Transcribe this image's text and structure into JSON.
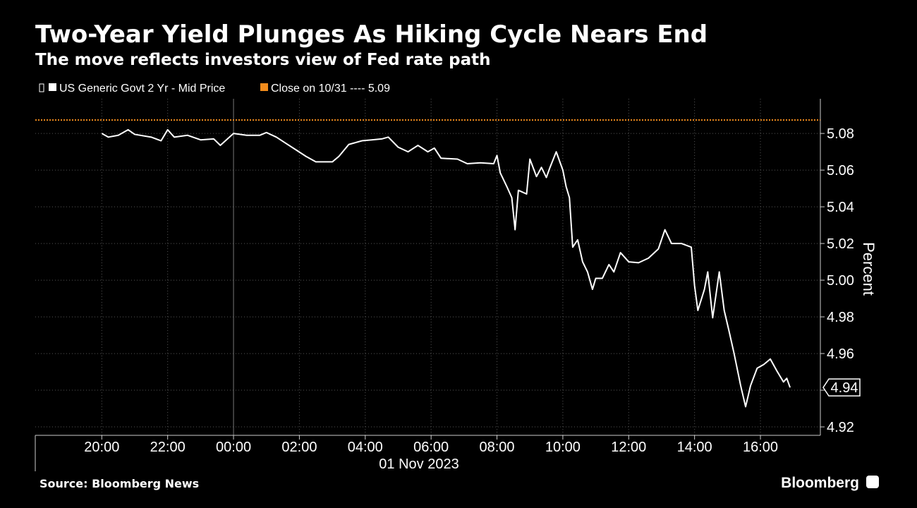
{
  "chart_data": {
    "type": "line",
    "title": "Two-Year Yield Plunges As Hiking Cycle Nears End",
    "subtitle": "The move reflects investors view of Fed rate path",
    "x_label": "01 Nov 2023",
    "y_label": "Percent",
    "source": "Source: Bloomberg News",
    "brand": "Bloomberg",
    "xlim": [
      -6.02,
      17.82
    ],
    "ylim": [
      4.9154,
      5.0989
    ],
    "xticks": [
      {
        "value": -4,
        "label": "20:00"
      },
      {
        "value": -2,
        "label": "22:00"
      },
      {
        "value": 0,
        "label": "00:00"
      },
      {
        "value": 2,
        "label": "02:00"
      },
      {
        "value": 4,
        "label": "04:00"
      },
      {
        "value": 6,
        "label": "06:00"
      },
      {
        "value": 8,
        "label": "08:00"
      },
      {
        "value": 10,
        "label": "10:00"
      },
      {
        "value": 12,
        "label": "12:00"
      },
      {
        "value": 14,
        "label": "14:00"
      },
      {
        "value": 16,
        "label": "16:00"
      }
    ],
    "yticks": [
      5.08,
      5.06,
      5.04,
      5.02,
      {
        "value": 5.0,
        "label": "5.00"
      },
      4.98,
      4.96,
      4.94,
      4.92
    ],
    "grid": true,
    "series": [
      {
        "name": "US Generic Govt 2 Yr - Mid Price",
        "color": "#ffffff",
        "x": [
          -4,
          -3.8,
          -3.5,
          -3.2,
          -3.0,
          -2.5,
          -2.2,
          -2.0,
          -1.8,
          -1.4,
          -1.0,
          -0.6,
          -0.4,
          0,
          0.4,
          0.8,
          1.0,
          1.3,
          1.6,
          1.9,
          2.2,
          2.5,
          3.0,
          3.2,
          3.5,
          3.9,
          4.2,
          4.5,
          4.7,
          5.0,
          5.3,
          5.6,
          5.9,
          6.1,
          6.3,
          6.8,
          7.1,
          7.5,
          7.9,
          8.0,
          8.1,
          8.3,
          8.45,
          8.55,
          8.65,
          8.9,
          9.0,
          9.2,
          9.35,
          9.5,
          9.6,
          9.8,
          10.0,
          10.1,
          10.2,
          10.3,
          10.45,
          10.6,
          10.75,
          10.9,
          11.0,
          11.2,
          11.4,
          11.55,
          11.75,
          12.0,
          12.3,
          12.6,
          12.9,
          13.1,
          13.3,
          13.6,
          13.9,
          14.0,
          14.1,
          14.3,
          14.4,
          14.55,
          14.75,
          14.9,
          15.05,
          15.2,
          15.4,
          15.55,
          15.7,
          15.9,
          16.1,
          16.3,
          16.5,
          16.7,
          16.8,
          16.9
        ],
        "values": [
          5.08,
          5.078,
          5.079,
          5.082,
          5.0795,
          5.078,
          5.076,
          5.082,
          5.078,
          5.079,
          5.0765,
          5.077,
          5.0735,
          5.08,
          5.079,
          5.079,
          5.0805,
          5.078,
          5.0745,
          5.071,
          5.0675,
          5.0645,
          5.0645,
          5.0675,
          5.074,
          5.076,
          5.0765,
          5.077,
          5.078,
          5.0725,
          5.07,
          5.0735,
          5.07,
          5.072,
          5.0665,
          5.066,
          5.0635,
          5.064,
          5.0635,
          5.068,
          5.0585,
          5.051,
          5.045,
          5.0275,
          5.049,
          5.047,
          5.066,
          5.0565,
          5.0615,
          5.056,
          5.061,
          5.07,
          5.06,
          5.051,
          5.045,
          5.018,
          5.022,
          5.01,
          5.0045,
          4.995,
          5.001,
          5.001,
          5.0085,
          5.0045,
          5.015,
          5.01,
          5.0095,
          5.012,
          5.017,
          5.0275,
          5.02,
          5.02,
          5.018,
          4.997,
          4.9835,
          4.995,
          5.0045,
          4.9795,
          5.0045,
          4.9835,
          4.972,
          4.96,
          4.9425,
          4.931,
          4.9425,
          4.952,
          4.954,
          4.957,
          4.9505,
          4.9445,
          4.9465,
          4.9415
        ],
        "end_label": "4.94"
      }
    ],
    "reference": {
      "name": "Close on 10/31 ---- 5.09",
      "color": "#f28c1c",
      "value": 5.0873
    }
  }
}
